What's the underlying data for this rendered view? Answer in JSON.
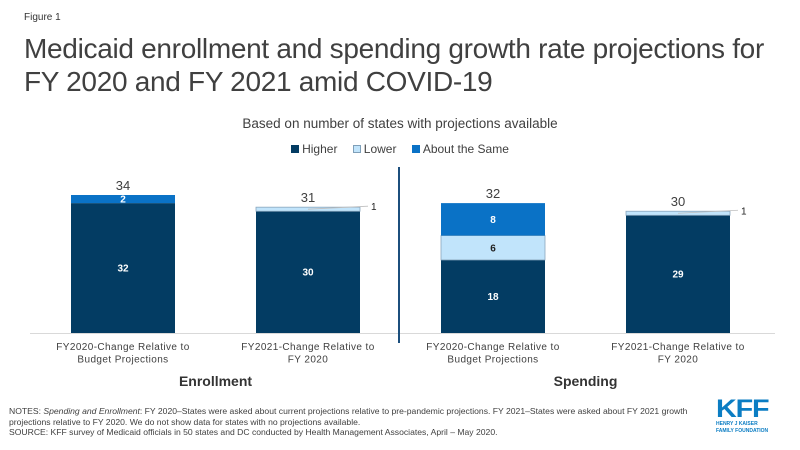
{
  "figure_label": "Figure 1",
  "colors": {
    "higher": "#033c63",
    "lower": "#c1e4fb",
    "same": "#0a72c6",
    "divider": "#1c4f7d",
    "axis": "#d9d9d9",
    "logo": "#0b7dc3"
  },
  "chart_data": {
    "type": "bar",
    "stacked": true,
    "title": "Medicaid enrollment and spending growth rate projections for FY 2020 and FY 2021 amid COVID-19",
    "subtitle": "Based on number of states with projections available",
    "legend": {
      "position": "top",
      "entries": [
        "Higher",
        "Lower",
        "About the Same"
      ]
    },
    "groups": [
      {
        "label": "Enrollment",
        "category_indices": [
          0,
          1
        ]
      },
      {
        "label": "Spending",
        "category_indices": [
          2,
          3
        ]
      }
    ],
    "categories": [
      [
        "FY2020-Change Relative to",
        "Budget Projections"
      ],
      [
        "FY2021-Change Relative to",
        "FY 2020"
      ],
      [
        "FY2020-Change Relative to",
        "Budget Projections"
      ],
      [
        "FY2021-Change Relative to",
        "FY 2020"
      ]
    ],
    "series": [
      {
        "name": "Higher",
        "values": [
          32,
          30,
          18,
          29
        ]
      },
      {
        "name": "Lower",
        "values": [
          0,
          1,
          6,
          1
        ]
      },
      {
        "name": "About the Same",
        "values": [
          2,
          0,
          8,
          0
        ]
      }
    ],
    "totals": [
      34,
      31,
      32,
      30
    ],
    "ylim": [
      0,
      34
    ],
    "grid": false,
    "xlabel": "",
    "ylabel": ""
  },
  "notes": {
    "notes_prefix": "NOTES: ",
    "notes_italic": "Spending and Enrollment",
    "notes_text": ": FY 2020–States were asked about current projections relative to pre-pandemic projections. FY 2021–States were asked about FY 2021 growth projections relative to FY 2020. We do not show data for states with no projections available.",
    "source": "SOURCE:  KFF survey of Medicaid officials in 50 states and DC conducted by Health Management Associates, April – May 2020."
  },
  "logo": {
    "text": "KFF",
    "line1": "HENRY J KAISER",
    "line2": "FAMILY FOUNDATION"
  }
}
